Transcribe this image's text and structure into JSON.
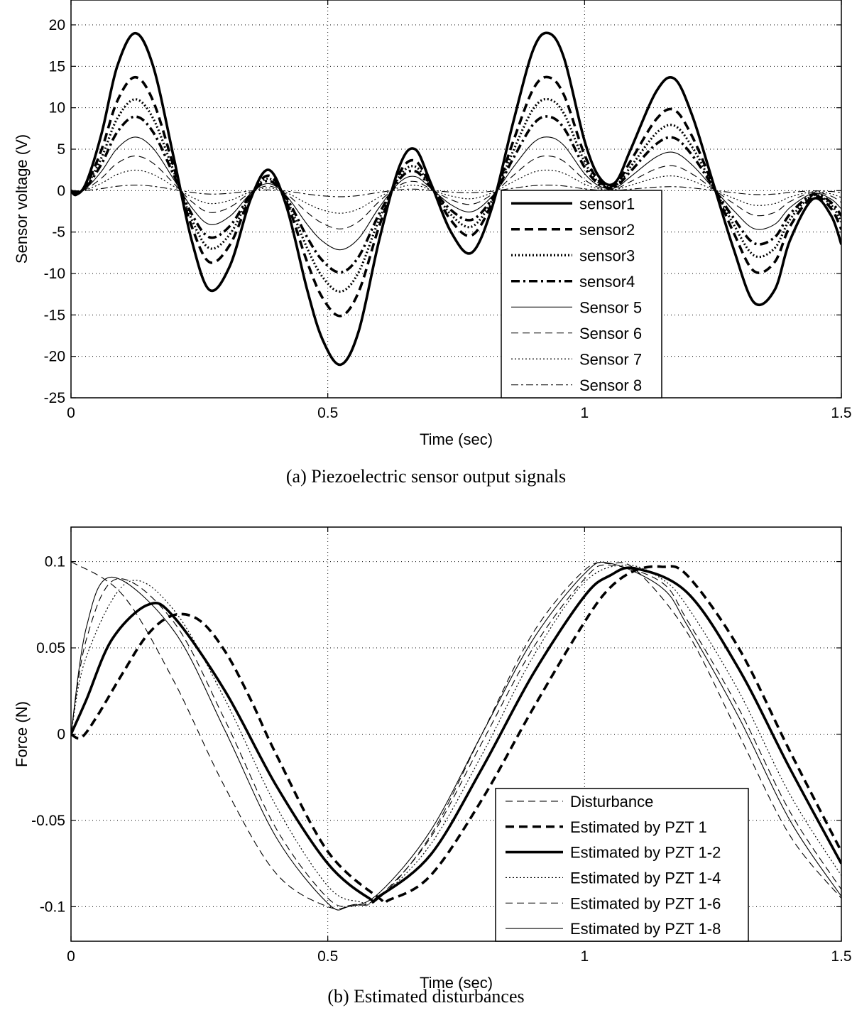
{
  "captions": {
    "a": "(a) Piezoelectric sensor output signals",
    "b": "(b) Estimated disturbances"
  },
  "chart_data": [
    {
      "type": "line",
      "xlabel": "Time (sec)",
      "ylabel": "Sensor voltage (V)",
      "xlim": [
        0,
        1.5
      ],
      "ylim": [
        -25,
        23
      ],
      "xticks": [
        0,
        0.5,
        1,
        1.5
      ],
      "xtick_labels": [
        "0",
        "0.5",
        "1",
        "1.5"
      ],
      "yticks": [
        -25,
        -20,
        -15,
        -10,
        -5,
        0,
        5,
        10,
        15,
        20
      ],
      "ytick_labels": [
        "-25",
        "-20",
        "-15",
        "-10",
        "-5",
        "0",
        "5",
        "10",
        "15",
        "20"
      ],
      "grid": true,
      "legend_position": "bottom-center",
      "series_base": {
        "x": [
          0,
          0.01,
          0.03,
          0.06,
          0.09,
          0.125,
          0.16,
          0.2,
          0.235,
          0.27,
          0.31,
          0.35,
          0.385,
          0.42,
          0.46,
          0.49,
          0.525,
          0.56,
          0.6,
          0.64,
          0.67,
          0.7,
          0.74,
          0.78,
          0.82,
          0.86,
          0.9,
          0.93,
          0.96,
          1.0,
          1.03,
          1.06,
          1.09,
          1.14,
          1.175,
          1.21,
          1.25,
          1.29,
          1.33,
          1.37,
          1.4,
          1.445,
          1.48,
          1.5
        ],
        "values": [
          0,
          -0.5,
          1,
          7,
          15,
          19,
          15,
          4,
          -6,
          -12,
          -9,
          -1,
          2.5,
          -2,
          -12,
          -18,
          -21,
          -17,
          -6,
          3,
          5,
          1,
          -5,
          -7.5,
          -2,
          8,
          17,
          19,
          16,
          6,
          1.5,
          1,
          5,
          12,
          13.5,
          9,
          1,
          -7,
          -13.5,
          -12,
          -6,
          -1,
          -3,
          -6.5
        ]
      },
      "series": [
        {
          "name": "sensor1",
          "scale": 1.0,
          "style": "bold-solid"
        },
        {
          "name": "sensor2",
          "scale": 0.72,
          "style": "bold-dashed"
        },
        {
          "name": "sensor3",
          "scale": 0.58,
          "style": "bold-dotted"
        },
        {
          "name": "sensor4",
          "scale": 0.47,
          "style": "bold-dashdot"
        },
        {
          "name": "Sensor 5",
          "scale": 0.34,
          "style": "thin-solid"
        },
        {
          "name": "Sensor 6",
          "scale": 0.22,
          "style": "thin-dashed"
        },
        {
          "name": "Sensor 7",
          "scale": 0.13,
          "style": "thin-dotted"
        },
        {
          "name": "Sensor 8",
          "scale": 0.035,
          "style": "thin-dashdot"
        }
      ]
    },
    {
      "type": "line",
      "xlabel": "Time (sec)",
      "ylabel": "Force (N)",
      "xlim": [
        0,
        1.5
      ],
      "ylim": [
        -0.12,
        0.12
      ],
      "xticks": [
        0,
        0.5,
        1,
        1.5
      ],
      "xtick_labels": [
        "0",
        "0.5",
        "1",
        "1.5"
      ],
      "yticks": [
        -0.1,
        -0.05,
        0,
        0.05,
        0.1
      ],
      "ytick_labels": [
        "-0.1",
        "-0.05",
        "0",
        "0.05",
        "0.1"
      ],
      "grid": true,
      "legend_position": "bottom-right",
      "series": [
        {
          "name": "Disturbance",
          "style": "thin-dashed",
          "x": [
            0,
            0.1,
            0.2,
            0.3,
            0.4,
            0.5,
            0.55,
            0.6,
            0.7,
            0.8,
            0.9,
            1.0,
            1.05,
            1.1,
            1.2,
            1.3,
            1.4,
            1.5
          ],
          "values": [
            0.1,
            0.0809,
            0.0309,
            -0.0309,
            -0.0809,
            -0.1,
            -0.0988,
            -0.0951,
            -0.0588,
            0.0,
            0.0588,
            0.0951,
            0.0988,
            0.0951,
            0.0588,
            0.0,
            -0.0588,
            -0.0951
          ]
        },
        {
          "name": "Estimated by PZT 1",
          "style": "bold-dashed",
          "x": [
            0,
            0.02,
            0.05,
            0.1,
            0.15,
            0.2,
            0.25,
            0.3,
            0.35,
            0.4,
            0.5,
            0.6,
            0.62,
            0.7,
            0.8,
            0.9,
            1.0,
            1.05,
            1.1,
            1.15,
            1.2,
            1.3,
            1.4,
            1.5
          ],
          "values": [
            0,
            -0.002,
            0.01,
            0.035,
            0.058,
            0.069,
            0.066,
            0.048,
            0.02,
            -0.012,
            -0.068,
            -0.095,
            -0.096,
            -0.082,
            -0.038,
            0.015,
            0.065,
            0.085,
            0.095,
            0.097,
            0.092,
            0.05,
            -0.01,
            -0.068
          ]
        },
        {
          "name": "Estimated by PZT 1-2",
          "style": "bold-solid",
          "x": [
            0,
            0.03,
            0.08,
            0.15,
            0.2,
            0.3,
            0.4,
            0.5,
            0.58,
            0.6,
            0.7,
            0.8,
            0.9,
            1.0,
            1.05,
            1.1,
            1.2,
            1.3,
            1.4,
            1.5
          ],
          "values": [
            0,
            0.02,
            0.055,
            0.075,
            0.068,
            0.025,
            -0.03,
            -0.075,
            -0.095,
            -0.094,
            -0.07,
            -0.02,
            0.035,
            0.08,
            0.092,
            0.096,
            0.082,
            0.038,
            -0.02,
            -0.075
          ]
        },
        {
          "name": "Estimated by PZT 1-4",
          "style": "thin-dotted",
          "x": [
            0,
            0.03,
            0.11,
            0.2,
            0.3,
            0.4,
            0.5,
            0.56,
            0.6,
            0.7,
            0.8,
            0.9,
            1.0,
            1.08,
            1.15,
            1.2,
            1.3,
            1.4,
            1.5
          ],
          "values": [
            0,
            0.045,
            0.088,
            0.072,
            0.02,
            -0.042,
            -0.088,
            -0.097,
            -0.095,
            -0.064,
            -0.012,
            0.045,
            0.088,
            0.098,
            0.09,
            0.074,
            0.025,
            -0.035,
            -0.082
          ]
        },
        {
          "name": "Estimated by PZT 1-6",
          "style": "thin-dashed",
          "x": [
            0,
            0.03,
            0.09,
            0.2,
            0.3,
            0.4,
            0.5,
            0.55,
            0.6,
            0.7,
            0.8,
            0.9,
            1.0,
            1.05,
            1.15,
            1.2,
            1.3,
            1.4,
            1.5
          ],
          "values": [
            0,
            0.055,
            0.09,
            0.065,
            0.008,
            -0.055,
            -0.095,
            -0.099,
            -0.094,
            -0.06,
            -0.005,
            0.05,
            0.09,
            0.098,
            0.088,
            0.066,
            0.015,
            -0.045,
            -0.09
          ]
        },
        {
          "name": "Estimated by PZT 1-8",
          "style": "thin-solid",
          "x": [
            0,
            0.03,
            0.08,
            0.2,
            0.3,
            0.4,
            0.5,
            0.54,
            0.6,
            0.7,
            0.8,
            0.9,
            1.0,
            1.05,
            1.15,
            1.2,
            1.3,
            1.4,
            1.5
          ],
          "values": [
            0,
            0.062,
            0.091,
            0.06,
            0.002,
            -0.06,
            -0.098,
            -0.1,
            -0.092,
            -0.056,
            0.0,
            0.055,
            0.093,
            0.099,
            0.085,
            0.063,
            0.01,
            -0.05,
            -0.094
          ]
        }
      ]
    }
  ]
}
